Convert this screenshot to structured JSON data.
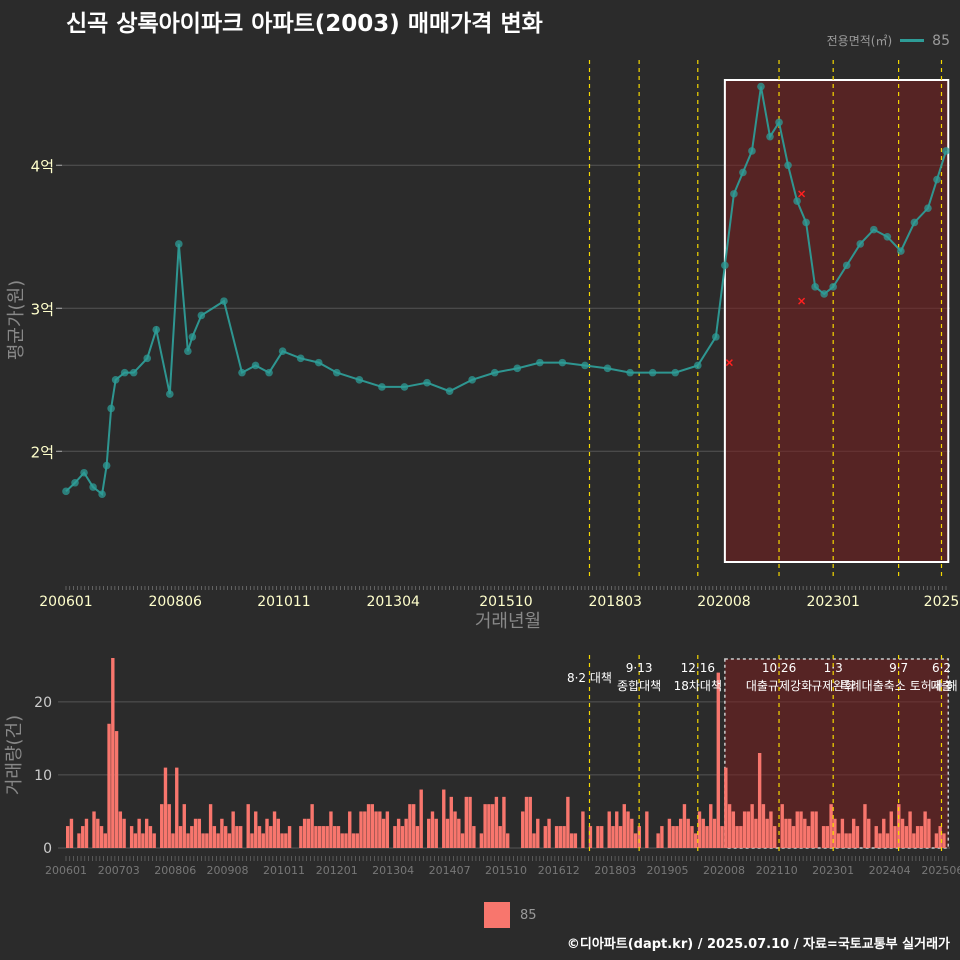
{
  "chart_data": [
    {
      "type": "line",
      "title": "신곡 상록아이파크 아파트(2003) 매매가격 변화",
      "xlabel": "거래년월",
      "ylabel": "평균가(원)",
      "legend_title": "전용면적(㎡)",
      "legend_value": "85",
      "x_ticks": [
        "200601",
        "200806",
        "201011",
        "201304",
        "201510",
        "201803",
        "202008",
        "202301",
        "2025"
      ],
      "y_ticks": [
        "2억",
        "3억",
        "4억"
      ],
      "ylim": [
        1.1,
        4.75
      ],
      "series": [
        {
          "name": "85",
          "x": [
            2006.0,
            2006.2,
            2006.4,
            2006.6,
            2006.8,
            2006.9,
            2007.0,
            2007.1,
            2007.3,
            2007.5,
            2007.8,
            2008.0,
            2008.3,
            2008.5,
            2008.7,
            2008.8,
            2009.0,
            2009.5,
            2009.9,
            2010.2,
            2010.5,
            2010.8,
            2011.2,
            2011.6,
            2012.0,
            2012.5,
            2013.0,
            2013.5,
            2014.0,
            2014.5,
            2015.0,
            2015.5,
            2016.0,
            2016.5,
            2017.0,
            2017.5,
            2018.0,
            2018.5,
            2019.0,
            2019.5,
            2020.0,
            2020.4,
            2020.6,
            2020.8,
            2021.0,
            2021.2,
            2021.4,
            2021.6,
            2021.8,
            2022.0,
            2022.2,
            2022.4,
            2022.6,
            2022.8,
            2023.0,
            2023.3,
            2023.6,
            2023.9,
            2024.2,
            2024.5,
            2024.8,
            2025.1,
            2025.3,
            2025.5
          ],
          "values": [
            1.72,
            1.78,
            1.85,
            1.75,
            1.7,
            1.9,
            2.3,
            2.5,
            2.55,
            2.55,
            2.65,
            2.85,
            2.4,
            3.45,
            2.7,
            2.8,
            2.95,
            3.05,
            2.55,
            2.6,
            2.55,
            2.7,
            2.65,
            2.62,
            2.55,
            2.5,
            2.45,
            2.45,
            2.48,
            2.42,
            2.5,
            2.55,
            2.58,
            2.62,
            2.62,
            2.6,
            2.58,
            2.55,
            2.55,
            2.55,
            2.6,
            2.8,
            3.3,
            3.8,
            3.95,
            4.1,
            4.55,
            4.2,
            4.3,
            4.0,
            3.75,
            3.6,
            3.15,
            3.1,
            3.15,
            3.3,
            3.45,
            3.55,
            3.5,
            3.4,
            3.6,
            3.7,
            3.9,
            4.1
          ]
        }
      ],
      "cancelled": [
        {
          "x": 2020.7,
          "value": 2.62
        },
        {
          "x": 2022.3,
          "value": 3.8
        },
        {
          "x": 2022.3,
          "value": 3.05
        }
      ],
      "policy_lines": [
        2017.6,
        2018.7,
        2020.0,
        2021.8,
        2023.0,
        2024.45,
        2025.4
      ],
      "highlight": [
        2020.6,
        2025.55
      ]
    },
    {
      "type": "bar",
      "ylabel": "거래량(건)",
      "legend_value": "85",
      "x_ticks": [
        "200601",
        "200703",
        "200806",
        "200908",
        "201011",
        "201201",
        "201304",
        "201407",
        "201510",
        "201612",
        "201803",
        "201905",
        "202008",
        "202110",
        "202301",
        "202404",
        "202506"
      ],
      "y_ticks": [
        "0",
        "10",
        "20"
      ],
      "ylim": [
        0,
        26
      ],
      "peaks": [
        {
          "x": 2006.9,
          "value": 17
        },
        {
          "x": 2007.0,
          "value": 26
        },
        {
          "x": 2007.1,
          "value": 16
        },
        {
          "x": 2008.2,
          "value": 11
        },
        {
          "x": 2008.4,
          "value": 11
        },
        {
          "x": 2020.4,
          "value": 24
        },
        {
          "x": 2020.55,
          "value": 11
        },
        {
          "x": 2021.3,
          "value": 13
        }
      ],
      "policy_labels": [
        {
          "x": 2017.6,
          "label": "8·2 대책"
        },
        {
          "x": 2018.7,
          "label": "9·13 종합대책"
        },
        {
          "x": 2020.0,
          "label": "12·16 18차대책"
        },
        {
          "x": 2021.8,
          "label": "10·26 대출규제강화"
        },
        {
          "x": 2023.0,
          "label": "1·3 규제완화"
        },
        {
          "x": 2024.45,
          "label": "9·7 특례대출축소 토허제 해"
        },
        {
          "x": 2025.4,
          "label": "6·2 대출"
        }
      ]
    }
  ],
  "footer": "©디아파트(dapt.kr) / 2025.07.10 / 자료=국토교통부 실거래가",
  "colors": {
    "line": "#2e9c97",
    "bar": "#f8766d",
    "policy": "#f5d800",
    "highlight": "#7a1f1f",
    "cancel": "#ff2020"
  }
}
